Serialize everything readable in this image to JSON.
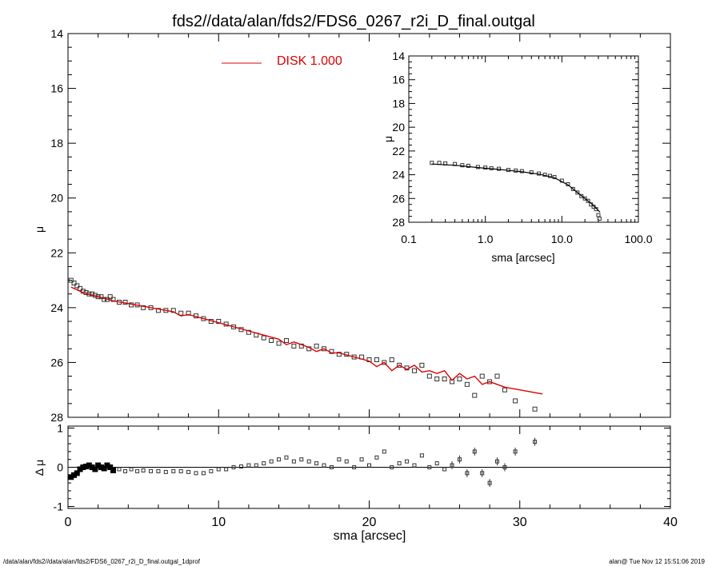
{
  "page": {
    "title": "fds2//data/alan/fds2/FDS6_0267_r2i_D_final.outgal",
    "footer_left": "/data/alan/fds2//data/alan/fds2/FDS6_0267_r2i_D_final.outgal_1dprof",
    "footer_right": "alan@  Tue Nov 12 15:51:06 2019"
  },
  "colors": {
    "model": "#e00000",
    "data": "#333333",
    "axis": "#000000"
  },
  "chart_data": [
    {
      "id": "main-profile",
      "type": "scatter",
      "ylabel": "μ",
      "xlim": [
        0,
        40
      ],
      "ylim": [
        28,
        14
      ],
      "xticks": [
        "0",
        "10",
        "20",
        "30",
        "40"
      ],
      "yticks": [
        "14",
        "16",
        "18",
        "20",
        "22",
        "24",
        "26",
        "28"
      ],
      "legend": {
        "label": "DISK  1.000",
        "position": "top-center"
      },
      "series": [
        {
          "kind": "points",
          "x": [
            0.2,
            0.4,
            0.6,
            0.8,
            1.0,
            1.2,
            1.4,
            1.6,
            1.8,
            2.0,
            2.2,
            2.4,
            2.6,
            2.8,
            3.0,
            3.4,
            3.8,
            4.2,
            4.6,
            5.0,
            5.5,
            6.0,
            6.5,
            7.0,
            7.5,
            8.0,
            8.5,
            9.0,
            9.5,
            10.0,
            10.5,
            11.0,
            11.5,
            12.0,
            12.5,
            13.0,
            13.5,
            14.0,
            14.5,
            15.0,
            15.5,
            16.0,
            16.5,
            17.0,
            17.5,
            18.0,
            18.5,
            19.0,
            19.5,
            20.0,
            20.5,
            21.0,
            21.5,
            22.0,
            22.5,
            23.0,
            23.5,
            24.0,
            24.5,
            25.0,
            25.5,
            26.0,
            26.5,
            27.0,
            27.5,
            28.0,
            28.5,
            29.0,
            29.7,
            31.0
          ],
          "y": [
            23.0,
            23.1,
            23.2,
            23.3,
            23.4,
            23.45,
            23.5,
            23.5,
            23.55,
            23.6,
            23.6,
            23.7,
            23.7,
            23.6,
            23.7,
            23.8,
            23.8,
            23.9,
            23.9,
            24.0,
            24.0,
            24.1,
            24.1,
            24.1,
            24.2,
            24.2,
            24.3,
            24.4,
            24.5,
            24.5,
            24.6,
            24.7,
            24.8,
            24.9,
            25.0,
            25.1,
            25.2,
            25.3,
            25.2,
            25.4,
            25.4,
            25.5,
            25.4,
            25.5,
            25.6,
            25.7,
            25.7,
            25.8,
            25.8,
            25.9,
            25.9,
            26.0,
            25.9,
            26.1,
            26.2,
            26.3,
            26.1,
            26.5,
            26.6,
            26.6,
            26.7,
            26.6,
            26.8,
            27.2,
            26.5,
            26.7,
            26.5,
            27.0,
            27.4,
            27.7
          ]
        },
        {
          "kind": "line",
          "name": "DISK  1.000",
          "x": [
            0.2,
            1,
            2,
            3,
            4,
            5,
            6,
            7,
            7.5,
            8,
            9,
            10,
            11,
            12,
            13,
            14,
            14.5,
            15,
            16,
            16.5,
            17,
            17.5,
            18,
            19,
            20,
            20.5,
            21,
            21.5,
            22,
            22.5,
            23,
            23.5,
            24,
            24.5,
            25,
            25.5,
            26,
            26.5,
            27,
            27.5,
            28,
            29,
            30,
            31.5
          ],
          "y": [
            23.25,
            23.45,
            23.6,
            23.75,
            23.85,
            23.95,
            24.05,
            24.15,
            24.3,
            24.25,
            24.4,
            24.55,
            24.7,
            24.85,
            25.0,
            25.15,
            25.35,
            25.25,
            25.45,
            25.6,
            25.5,
            25.65,
            25.65,
            25.8,
            25.95,
            26.15,
            26.0,
            26.3,
            26.1,
            26.25,
            26.1,
            26.35,
            26.3,
            26.4,
            26.3,
            26.65,
            26.4,
            26.6,
            26.5,
            26.8,
            26.7,
            26.9,
            27.0,
            27.15
          ]
        }
      ]
    },
    {
      "id": "inset-log",
      "type": "scatter",
      "xlabel": "sma [arcsec]",
      "ylabel": "μ",
      "xscale": "log",
      "xlim": [
        0.1,
        100
      ],
      "ylim": [
        28,
        14
      ],
      "xticks": [
        "0.1",
        "1.0",
        "10.0",
        "100.0"
      ],
      "yticks": [
        "14",
        "16",
        "18",
        "20",
        "22",
        "24",
        "26",
        "28"
      ],
      "series": [
        {
          "kind": "points",
          "x": [
            0.2,
            0.25,
            0.3,
            0.4,
            0.5,
            0.6,
            0.8,
            1.0,
            1.2,
            1.5,
            2.0,
            2.5,
            3.0,
            4.0,
            5.0,
            6.0,
            7.0,
            8.0,
            10.0,
            12.0,
            14.0,
            16.0,
            18.0,
            20.0,
            22.0,
            24.0,
            26.0,
            28.0,
            30.0,
            31.0
          ],
          "y": [
            23.0,
            23.0,
            23.05,
            23.1,
            23.2,
            23.25,
            23.35,
            23.4,
            23.45,
            23.5,
            23.6,
            23.65,
            23.7,
            23.8,
            23.9,
            24.0,
            24.1,
            24.2,
            24.5,
            24.8,
            25.2,
            25.5,
            25.8,
            26.0,
            26.2,
            26.5,
            26.7,
            26.9,
            27.4,
            27.7
          ]
        },
        {
          "kind": "line",
          "x": [
            0.2,
            0.4,
            0.8,
            1.5,
            3.0,
            5.0,
            8.0,
            12.0,
            16.0,
            20.0,
            25.0,
            31.5
          ],
          "y": [
            23.1,
            23.2,
            23.4,
            23.55,
            23.75,
            23.95,
            24.25,
            24.85,
            25.5,
            26.0,
            26.5,
            27.15
          ]
        }
      ]
    },
    {
      "id": "residuals",
      "type": "scatter",
      "xlabel": "sma [arcsec]",
      "ylabel": "Δ μ",
      "xlim": [
        0,
        40
      ],
      "ylim": [
        -1,
        1
      ],
      "xticks": [
        "0",
        "10",
        "20",
        "30",
        "40"
      ],
      "yticks": [
        "-1",
        "0",
        "1"
      ],
      "series": [
        {
          "kind": "points",
          "x": [
            0.2,
            0.4,
            0.6,
            0.8,
            1.0,
            1.2,
            1.4,
            1.6,
            1.8,
            2.0,
            2.2,
            2.4,
            2.6,
            2.8,
            3.0,
            3.4,
            3.8,
            4.2,
            4.6,
            5.0,
            5.5,
            6.0,
            6.5,
            7.0,
            7.5,
            8.0,
            8.5,
            9.0,
            9.5,
            10.0,
            10.5,
            11.0,
            11.5,
            12.0,
            12.5,
            13.0,
            13.5,
            14.0,
            14.5,
            15.0,
            15.5,
            16.0,
            16.5,
            17.0,
            17.5,
            18.0,
            18.5,
            19.0,
            19.5,
            20.0,
            20.5,
            21.0,
            21.5,
            22.0,
            22.5,
            23.0,
            23.5,
            24.0,
            24.5,
            25.0,
            25.5,
            26.0,
            26.5,
            27.0,
            27.5,
            28.0,
            28.5,
            29.0,
            29.7,
            31.0
          ],
          "y": [
            -0.25,
            -0.2,
            -0.15,
            -0.05,
            0.0,
            0.02,
            0.05,
            0.0,
            -0.05,
            0.05,
            0.0,
            -0.03,
            0.05,
            0.0,
            -0.08,
            -0.05,
            -0.1,
            -0.05,
            -0.1,
            -0.08,
            -0.1,
            -0.1,
            -0.12,
            -0.1,
            -0.1,
            -0.12,
            -0.15,
            -0.15,
            -0.1,
            -0.05,
            -0.05,
            0.0,
            0.02,
            0.05,
            0.05,
            0.1,
            0.15,
            0.2,
            0.25,
            0.15,
            0.2,
            0.15,
            0.1,
            0.05,
            0.0,
            0.2,
            0.15,
            0.0,
            0.2,
            0.05,
            0.25,
            0.4,
            0.0,
            0.1,
            0.15,
            0.05,
            0.3,
            0.0,
            0.1,
            -0.05,
            0.05,
            0.2,
            -0.15,
            0.4,
            -0.15,
            -0.4,
            0.15,
            0.0,
            0.4,
            0.65
          ]
        }
      ]
    }
  ]
}
